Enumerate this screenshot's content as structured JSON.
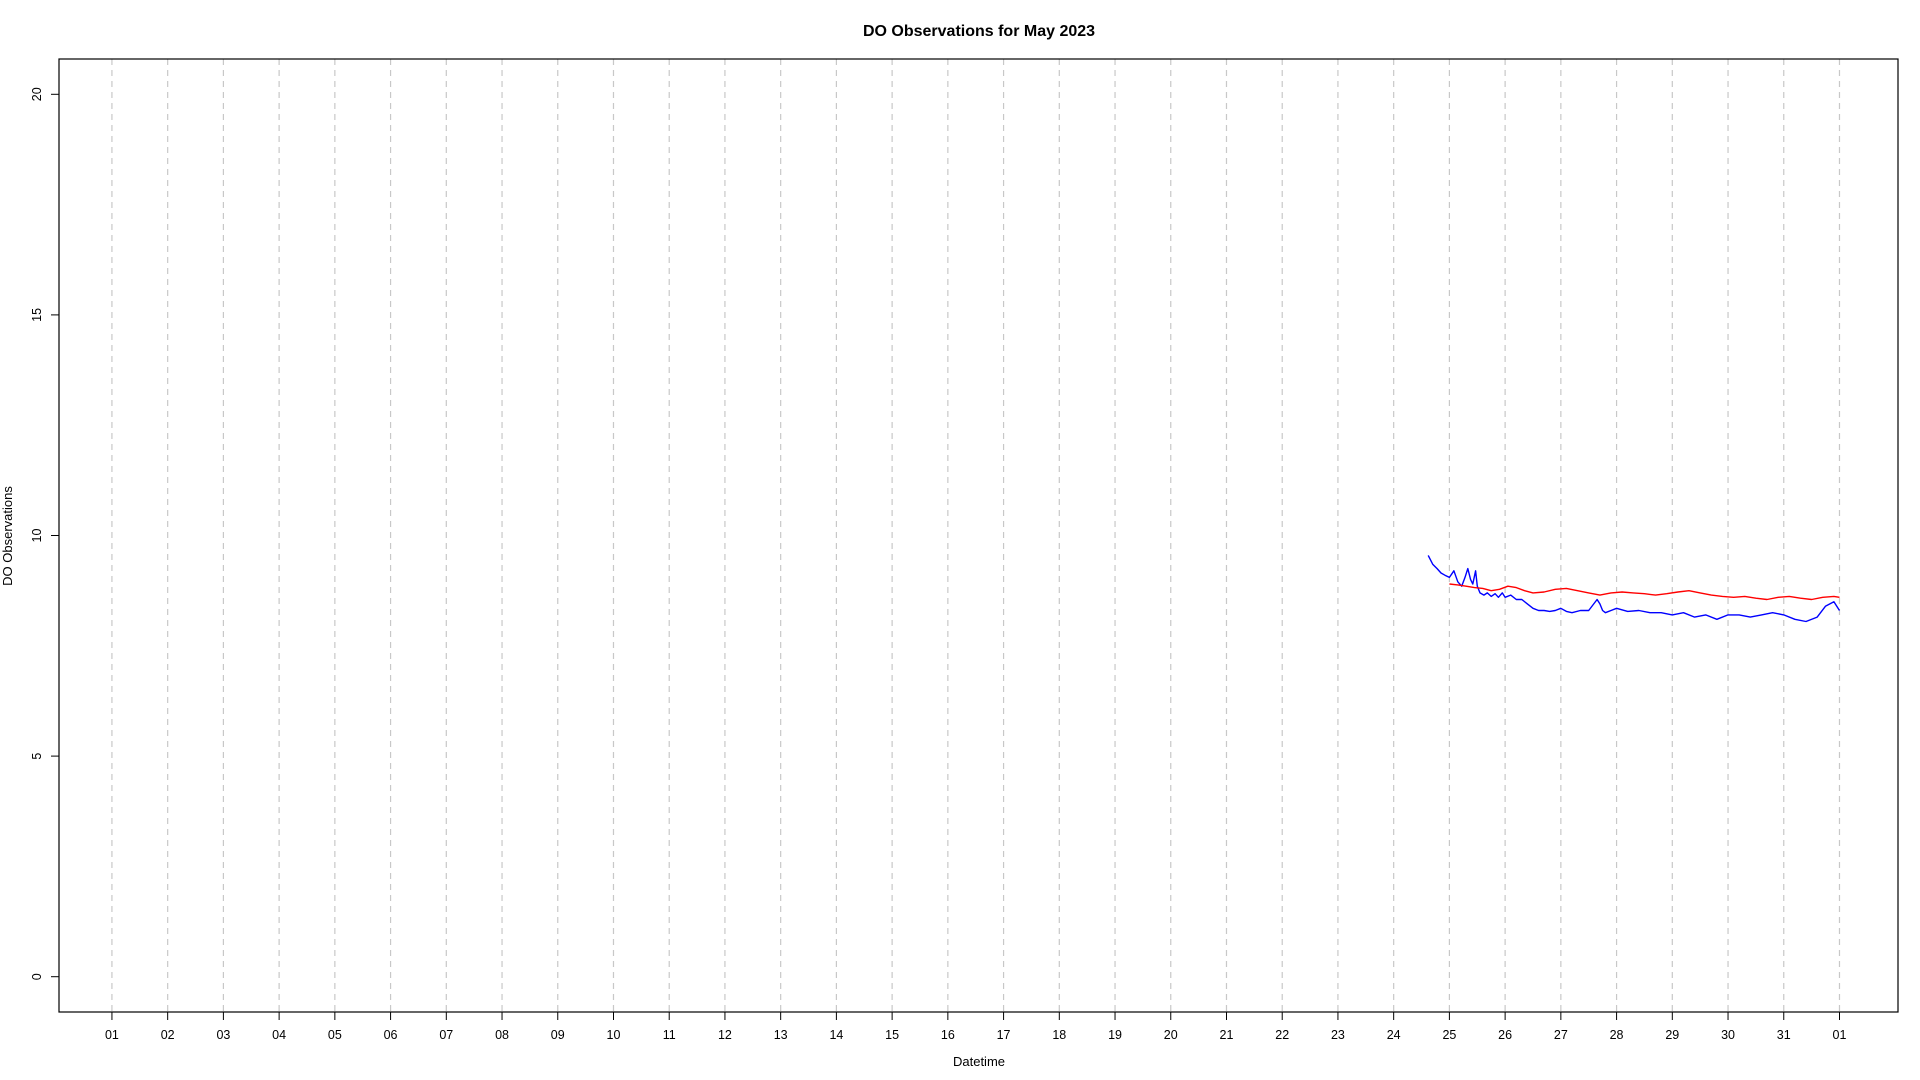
{
  "chart_data": {
    "type": "line",
    "title": "DO Observations for May 2023",
    "xlabel": "Datetime",
    "ylabel": "DO Observations",
    "ylim": [
      -0.8,
      20.8
    ],
    "xlim": [
      -0.95,
      32.05
    ],
    "grid": {
      "x": true,
      "y": false,
      "style": "dashed",
      "color": "#c8c8c8"
    },
    "x_unit": "day-of-month offset",
    "x_ticks": [
      0,
      1,
      2,
      3,
      4,
      5,
      6,
      7,
      8,
      9,
      10,
      11,
      12,
      13,
      14,
      15,
      16,
      17,
      18,
      19,
      20,
      21,
      22,
      23,
      24,
      25,
      26,
      27,
      28,
      29,
      30,
      31
    ],
    "x_tick_labels": [
      "01",
      "02",
      "03",
      "04",
      "05",
      "06",
      "07",
      "08",
      "09",
      "10",
      "11",
      "12",
      "13",
      "14",
      "15",
      "16",
      "17",
      "18",
      "19",
      "20",
      "21",
      "22",
      "23",
      "24",
      "25",
      "26",
      "27",
      "28",
      "29",
      "30",
      "31",
      "01"
    ],
    "y_ticks": [
      0,
      5,
      10,
      15,
      20
    ],
    "y_tick_labels": [
      "0",
      "5",
      "10",
      "15",
      "20"
    ],
    "series": [
      {
        "color": "#0000ff",
        "x": [
          23.62,
          23.7,
          23.78,
          23.85,
          23.92,
          24.0,
          24.08,
          24.15,
          24.22,
          24.28,
          24.33,
          24.38,
          24.42,
          24.47,
          24.5,
          24.55,
          24.62,
          24.68,
          24.75,
          24.82,
          24.88,
          24.95,
          25.0,
          25.1,
          25.2,
          25.3,
          25.4,
          25.5,
          25.6,
          25.7,
          25.8,
          25.9,
          26.0,
          26.1,
          26.2,
          26.35,
          26.5,
          26.65,
          26.7,
          26.75,
          26.8,
          26.9,
          27.0,
          27.2,
          27.4,
          27.6,
          27.8,
          28.0,
          28.2,
          28.4,
          28.6,
          28.8,
          29.0,
          29.2,
          29.4,
          29.6,
          29.8,
          30.0,
          30.2,
          30.4,
          30.6,
          30.75,
          30.9,
          31.0
        ],
        "y": [
          9.55,
          9.35,
          9.25,
          9.15,
          9.1,
          9.05,
          9.2,
          8.95,
          8.85,
          9.05,
          9.25,
          9.0,
          8.9,
          9.2,
          8.85,
          8.7,
          8.65,
          8.7,
          8.62,
          8.68,
          8.6,
          8.7,
          8.6,
          8.65,
          8.55,
          8.55,
          8.45,
          8.35,
          8.3,
          8.3,
          8.28,
          8.3,
          8.35,
          8.28,
          8.25,
          8.3,
          8.3,
          8.55,
          8.45,
          8.3,
          8.25,
          8.3,
          8.35,
          8.28,
          8.3,
          8.25,
          8.25,
          8.2,
          8.25,
          8.15,
          8.2,
          8.1,
          8.2,
          8.2,
          8.15,
          8.2,
          8.25,
          8.2,
          8.1,
          8.05,
          8.15,
          8.4,
          8.5,
          8.3
        ]
      },
      {
        "color": "#ff0000",
        "x": [
          24.0,
          24.15,
          24.3,
          24.45,
          24.6,
          24.75,
          24.9,
          25.05,
          25.2,
          25.35,
          25.5,
          25.7,
          25.9,
          26.1,
          26.3,
          26.5,
          26.7,
          26.9,
          27.1,
          27.3,
          27.5,
          27.7,
          27.9,
          28.1,
          28.3,
          28.5,
          28.7,
          28.9,
          29.1,
          29.3,
          29.5,
          29.7,
          29.9,
          30.1,
          30.3,
          30.5,
          30.7,
          30.9,
          31.0
        ],
        "y": [
          8.9,
          8.88,
          8.85,
          8.82,
          8.8,
          8.75,
          8.78,
          8.85,
          8.82,
          8.75,
          8.7,
          8.72,
          8.78,
          8.8,
          8.75,
          8.7,
          8.65,
          8.7,
          8.72,
          8.7,
          8.68,
          8.65,
          8.68,
          8.72,
          8.75,
          8.7,
          8.65,
          8.62,
          8.6,
          8.62,
          8.58,
          8.55,
          8.6,
          8.62,
          8.58,
          8.55,
          8.6,
          8.62,
          8.6
        ]
      }
    ]
  }
}
